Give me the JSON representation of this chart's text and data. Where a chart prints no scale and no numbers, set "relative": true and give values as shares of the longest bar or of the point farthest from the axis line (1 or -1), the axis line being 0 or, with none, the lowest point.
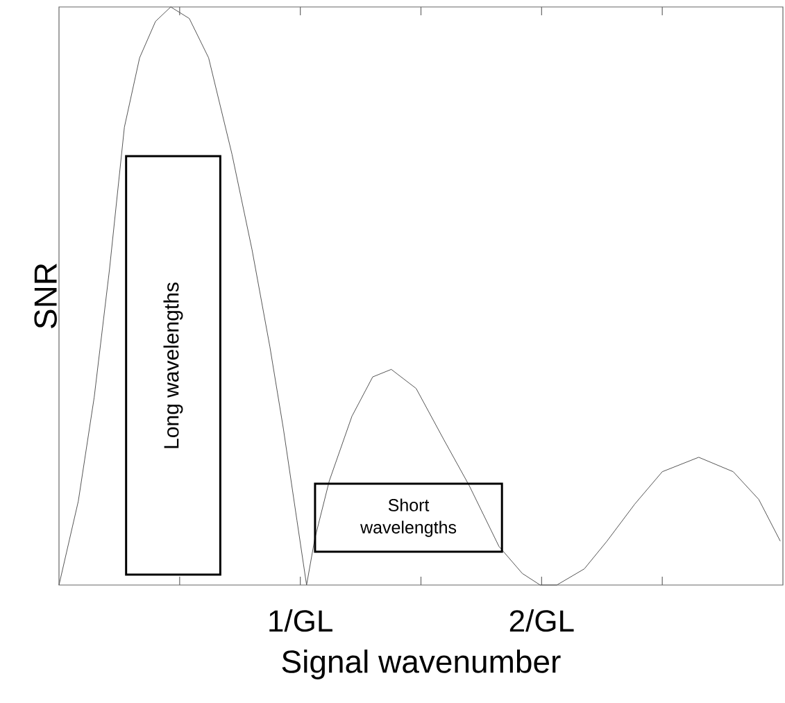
{
  "chart_data": {
    "type": "line",
    "xlabel": "Signal wavenumber",
    "ylabel": "SNR",
    "relative": true,
    "xlim": [
      0,
      3
    ],
    "xticks": [
      {
        "value": 0.5,
        "label": null
      },
      {
        "value": 1,
        "label": "1/GL"
      },
      {
        "value": 1.5,
        "label": null
      },
      {
        "value": 2,
        "label": "2/GL"
      },
      {
        "value": 2.5,
        "label": null
      }
    ],
    "x": [
      0,
      0.08,
      0.146,
      0.209,
      0.271,
      0.334,
      0.4,
      0.463,
      0.54,
      0.62,
      0.717,
      0.8,
      0.874,
      0.93,
      0.986,
      1.026,
      1.06,
      1.12,
      1.214,
      1.3,
      1.377,
      1.48,
      1.594,
      1.7,
      1.823,
      1.92,
      1.994,
      2.063,
      2.177,
      2.271,
      2.386,
      2.5,
      2.651,
      2.794,
      2.9,
      2.989
    ],
    "series": [
      {
        "color": "#555555",
        "values": [
          0,
          0.145,
          0.325,
          0.545,
          0.792,
          0.912,
          0.975,
          1,
          0.98,
          0.912,
          0.745,
          0.58,
          0.412,
          0.27,
          0.112,
          0,
          0.08,
          0.18,
          0.292,
          0.36,
          0.373,
          0.34,
          0.252,
          0.172,
          0.067,
          0.02,
          0,
          0,
          0.028,
          0.076,
          0.14,
          0.196,
          0.221,
          0.196,
          0.148,
          0.076
        ]
      }
    ],
    "annotations": [
      "Long wavelengths",
      "Short wavelengths"
    ],
    "grid": false,
    "marker": "none",
    "line_style": "solid"
  }
}
